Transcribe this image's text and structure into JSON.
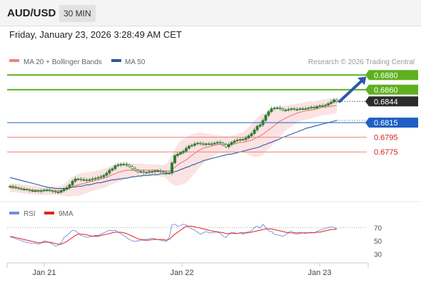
{
  "header": {
    "symbol": "AUD/USD",
    "timeframe": "30 MIN",
    "datetime": "Friday, January 23, 2026 3:28:49 AM CET"
  },
  "legend": {
    "ma20": "MA 20 + Bollinger Bands",
    "ma50": "MA 50",
    "copyright": "Research © 2026 Trading Central",
    "rsi": "RSI",
    "rsi_ma": "9MA"
  },
  "colors": {
    "candle": "#2e7d32",
    "ma20": "#f08080",
    "bollinger": "#fadada",
    "ma50": "#2a5aa6",
    "resistance": "#5fb020",
    "support": "#f08080",
    "pivot": "#1f5fc4",
    "arrow": "#2a5aa6",
    "rsi": "#6f8fe0",
    "rsi_ma": "#e32020"
  },
  "chart_data": {
    "type": "candlestick",
    "instrument": "AUD/USD",
    "interval": "30 MIN",
    "x_ticks": [
      "Jan 21",
      "Jan 22",
      "Jan 23"
    ],
    "levels": [
      {
        "value": 0.688,
        "label": "0.6880",
        "kind": "resistance"
      },
      {
        "value": 0.686,
        "label": "0.6860",
        "kind": "resistance"
      },
      {
        "value": 0.6844,
        "label": "0.6844",
        "kind": "last"
      },
      {
        "value": 0.6815,
        "label": "0.6815",
        "kind": "pivot"
      },
      {
        "value": 0.6795,
        "label": "0.6795",
        "kind": "support"
      },
      {
        "value": 0.6775,
        "label": "0.6775",
        "kind": "support"
      }
    ],
    "price_range": [
      0.671,
      0.689
    ],
    "close": [
      0.6728,
      0.6727,
      0.6726,
      0.6725,
      0.6724,
      0.6724,
      0.6723,
      0.6722,
      0.6722,
      0.6722,
      0.6721,
      0.6722,
      0.6723,
      0.6723,
      0.6722,
      0.6721,
      0.672,
      0.672,
      0.6722,
      0.6724,
      0.6726,
      0.673,
      0.6735,
      0.6738,
      0.6738,
      0.6737,
      0.6737,
      0.6736,
      0.6737,
      0.6738,
      0.6739,
      0.674,
      0.6741,
      0.6743,
      0.6746,
      0.675,
      0.6752,
      0.6756,
      0.6757,
      0.6758,
      0.6758,
      0.6757,
      0.6755,
      0.6752,
      0.675,
      0.6748,
      0.6748,
      0.6747,
      0.6747,
      0.6748,
      0.6748,
      0.6749,
      0.6749,
      0.6748,
      0.6747,
      0.6746,
      0.6746,
      0.676,
      0.677,
      0.6772,
      0.6774,
      0.6776,
      0.678,
      0.6783,
      0.6784,
      0.6786,
      0.6787,
      0.6786,
      0.6785,
      0.6786,
      0.6786,
      0.6786,
      0.6787,
      0.6788,
      0.6787,
      0.6785,
      0.6782,
      0.6785,
      0.6788,
      0.679,
      0.6791,
      0.6792,
      0.6792,
      0.6794,
      0.6797,
      0.68,
      0.6805,
      0.681,
      0.6812,
      0.6818,
      0.6825,
      0.683,
      0.6834,
      0.6835,
      0.6835,
      0.6834,
      0.6832,
      0.6832,
      0.6833,
      0.6834,
      0.6833,
      0.6833,
      0.6834,
      0.6834,
      0.6834,
      0.6835,
      0.6836,
      0.6835,
      0.6837,
      0.6838,
      0.6838,
      0.6839,
      0.6841,
      0.6843,
      0.6846,
      0.6844
    ],
    "ma20": [
      0.6726,
      0.6726,
      0.6726,
      0.6725,
      0.6725,
      0.6724,
      0.6724,
      0.6723,
      0.6723,
      0.6723,
      0.6722,
      0.6722,
      0.6722,
      0.6722,
      0.6722,
      0.6722,
      0.6722,
      0.6722,
      0.6722,
      0.6723,
      0.6724,
      0.6726,
      0.6728,
      0.6729,
      0.673,
      0.6731,
      0.6732,
      0.6733,
      0.6734,
      0.6735,
      0.6736,
      0.6737,
      0.6738,
      0.6739,
      0.674,
      0.6742,
      0.6744,
      0.6745,
      0.6747,
      0.6748,
      0.6749,
      0.675,
      0.675,
      0.675,
      0.675,
      0.675,
      0.675,
      0.675,
      0.675,
      0.675,
      0.675,
      0.675,
      0.675,
      0.6749,
      0.6749,
      0.6749,
      0.6749,
      0.6751,
      0.6754,
      0.6757,
      0.676,
      0.6762,
      0.6764,
      0.6767,
      0.677,
      0.6773,
      0.6776,
      0.6778,
      0.678,
      0.6781,
      0.6782,
      0.6783,
      0.6784,
      0.6785,
      0.6785,
      0.6785,
      0.6785,
      0.6785,
      0.6786,
      0.6786,
      0.6787,
      0.6788,
      0.6788,
      0.6789,
      0.679,
      0.6791,
      0.6793,
      0.6795,
      0.6797,
      0.6799,
      0.6802,
      0.6805,
      0.6808,
      0.6811,
      0.6814,
      0.6817,
      0.6819,
      0.6821,
      0.6823,
      0.6825,
      0.6826,
      0.6828,
      0.6829,
      0.683,
      0.6831,
      0.6832,
      0.6832,
      0.6833,
      0.6834,
      0.6835,
      0.6836,
      0.6836,
      0.6837,
      0.6837,
      0.6838,
      0.6838
    ],
    "bb_width": [
      0.0006,
      0.0006,
      0.0006,
      0.0006,
      0.0006,
      0.0006,
      0.0006,
      0.0006,
      0.0006,
      0.0006,
      0.0006,
      0.0006,
      0.0006,
      0.0006,
      0.0006,
      0.0006,
      0.0006,
      0.0006,
      0.0007,
      0.0008,
      0.001,
      0.0012,
      0.0013,
      0.0014,
      0.0015,
      0.0015,
      0.0015,
      0.0014,
      0.0014,
      0.0013,
      0.0013,
      0.0013,
      0.0013,
      0.0013,
      0.0013,
      0.0013,
      0.0013,
      0.0013,
      0.0013,
      0.0013,
      0.0012,
      0.0011,
      0.001,
      0.0009,
      0.0009,
      0.0009,
      0.0009,
      0.0009,
      0.0008,
      0.0008,
      0.0008,
      0.0008,
      0.0008,
      0.0008,
      0.0008,
      0.001,
      0.0015,
      0.002,
      0.0025,
      0.0028,
      0.003,
      0.0031,
      0.0031,
      0.003,
      0.0029,
      0.0027,
      0.0025,
      0.0023,
      0.0021,
      0.0019,
      0.0018,
      0.0016,
      0.0014,
      0.0013,
      0.0012,
      0.0012,
      0.0012,
      0.0012,
      0.0012,
      0.0012,
      0.0012,
      0.0013,
      0.0014,
      0.0016,
      0.0019,
      0.0022,
      0.0025,
      0.0027,
      0.0028,
      0.0028,
      0.0027,
      0.0026,
      0.0025,
      0.0024,
      0.0023,
      0.0021,
      0.0019,
      0.0017,
      0.0016,
      0.0015,
      0.0014,
      0.0013,
      0.0012,
      0.0012,
      0.0012,
      0.0012,
      0.0012,
      0.0011,
      0.0011,
      0.0011,
      0.0011,
      0.0011,
      0.0011,
      0.0011,
      0.0011,
      0.0011
    ],
    "ma50": [
      0.674,
      0.6739,
      0.6738,
      0.6737,
      0.6736,
      0.6735,
      0.6734,
      0.6733,
      0.6732,
      0.6731,
      0.673,
      0.6729,
      0.6728,
      0.6727,
      0.6726,
      0.6726,
      0.6725,
      0.6725,
      0.6725,
      0.6725,
      0.6726,
      0.6726,
      0.6727,
      0.6727,
      0.6728,
      0.6728,
      0.6729,
      0.673,
      0.673,
      0.6731,
      0.6732,
      0.6733,
      0.6733,
      0.6734,
      0.6735,
      0.6736,
      0.6737,
      0.6737,
      0.6738,
      0.6738,
      0.6739,
      0.6739,
      0.674,
      0.6741,
      0.6741,
      0.6742,
      0.6742,
      0.6743,
      0.6743,
      0.6743,
      0.6744,
      0.6744,
      0.6744,
      0.6745,
      0.6745,
      0.6745,
      0.6746,
      0.6747,
      0.6748,
      0.6749,
      0.6751,
      0.6752,
      0.6754,
      0.6755,
      0.6757,
      0.6758,
      0.676,
      0.6761,
      0.6763,
      0.6764,
      0.6765,
      0.6766,
      0.6767,
      0.6768,
      0.6769,
      0.677,
      0.6771,
      0.6772,
      0.6772,
      0.6773,
      0.6774,
      0.6775,
      0.6776,
      0.6777,
      0.6778,
      0.6779,
      0.678,
      0.6781,
      0.6782,
      0.6784,
      0.6785,
      0.6787,
      0.6788,
      0.679,
      0.6791,
      0.6793,
      0.6795,
      0.6796,
      0.6798,
      0.6799,
      0.6801,
      0.6802,
      0.6804,
      0.6805,
      0.6807,
      0.6808,
      0.6809,
      0.681,
      0.6811,
      0.6812,
      0.6813,
      0.6814,
      0.6815,
      0.6816,
      0.6817,
      0.6818
    ],
    "forecast_target": 0.688,
    "rsi_axis": [
      70,
      50,
      30
    ],
    "rsi": [
      57,
      55,
      53,
      52,
      50,
      49,
      47,
      47,
      46,
      46,
      45,
      47,
      50,
      49,
      47,
      45,
      42,
      43,
      47,
      55,
      58,
      62,
      66,
      65,
      62,
      58,
      57,
      55,
      56,
      57,
      58,
      58,
      60,
      62,
      64,
      66,
      65,
      66,
      63,
      61,
      58,
      55,
      52,
      50,
      49,
      50,
      51,
      52,
      52,
      53,
      54,
      53,
      52,
      51,
      50,
      49,
      55,
      74,
      75,
      72,
      73,
      75,
      74,
      70,
      68,
      66,
      63,
      60,
      62,
      64,
      62,
      62,
      63,
      64,
      61,
      57,
      55,
      60,
      63,
      62,
      61,
      62,
      60,
      62,
      64,
      65,
      70,
      72,
      69,
      75,
      70,
      65,
      64,
      60,
      59,
      58,
      57,
      59,
      63,
      65,
      61,
      60,
      61,
      62,
      61,
      62,
      63,
      62,
      64,
      66,
      67,
      69,
      70,
      71,
      70,
      68
    ],
    "rsi_ma": [
      56,
      56,
      55,
      54,
      53,
      52,
      51,
      50,
      49,
      48,
      47,
      47,
      48,
      48,
      48,
      47,
      46,
      45,
      45,
      47,
      49,
      52,
      55,
      58,
      60,
      60,
      60,
      59,
      58,
      57,
      57,
      57,
      58,
      59,
      60,
      61,
      62,
      63,
      63,
      63,
      62,
      61,
      59,
      57,
      55,
      53,
      52,
      51,
      51,
      51,
      52,
      52,
      52,
      52,
      52,
      51,
      52,
      56,
      60,
      63,
      66,
      69,
      72,
      72,
      72,
      71,
      70,
      69,
      68,
      67,
      66,
      65,
      64,
      63,
      63,
      62,
      61,
      61,
      61,
      61,
      61,
      62,
      62,
      62,
      62,
      63,
      64,
      65,
      66,
      67,
      68,
      68,
      68,
      67,
      66,
      65,
      64,
      63,
      62,
      62,
      62,
      62,
      62,
      62,
      62,
      62,
      62,
      62,
      63,
      63,
      64,
      65,
      66,
      67,
      67,
      68
    ]
  }
}
